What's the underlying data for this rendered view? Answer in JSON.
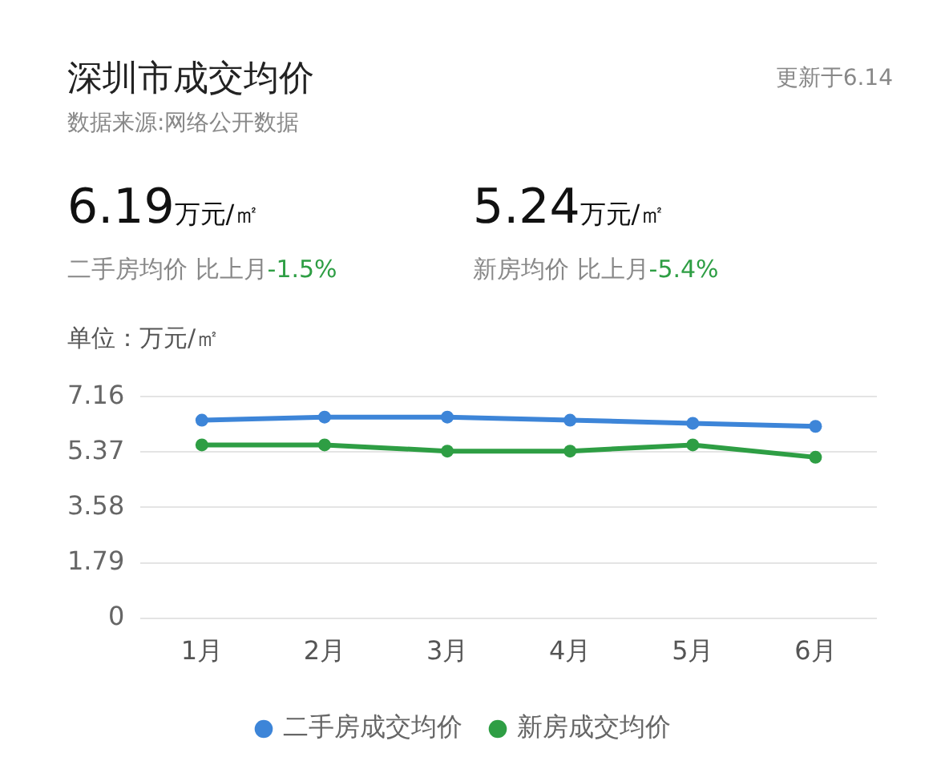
{
  "chart_data": {
    "type": "line",
    "title": "深圳市成交均价",
    "subtitle": "数据来源:网络公开数据",
    "ylabel": "单位：万元/㎡",
    "annotations": [
      "更新于6.14",
      "6.19",
      "万元/㎡",
      "二手房均价 比上月",
      "-1.5%",
      "5.24",
      "万元/㎡",
      "新房均价 比上月",
      "-5.4%"
    ],
    "categories": [
      "1月",
      "2月",
      "3月",
      "4月",
      "5月",
      "6月"
    ],
    "series": [
      {
        "name": "二手房成交均价",
        "color": "#3d85d8",
        "values": [
          6.4,
          6.5,
          6.5,
          6.4,
          6.3,
          6.2
        ]
      },
      {
        "name": "新房成交均价",
        "color": "#2e9e44",
        "values": [
          5.6,
          5.6,
          5.4,
          5.4,
          5.6,
          5.2
        ]
      }
    ],
    "ylim": [
      0,
      7.16
    ],
    "yticks": [
      0,
      1.79,
      3.58,
      5.37,
      7.16
    ],
    "grid": "y",
    "legend": "bottom",
    "marker": "circle",
    "line_style": "solid"
  }
}
